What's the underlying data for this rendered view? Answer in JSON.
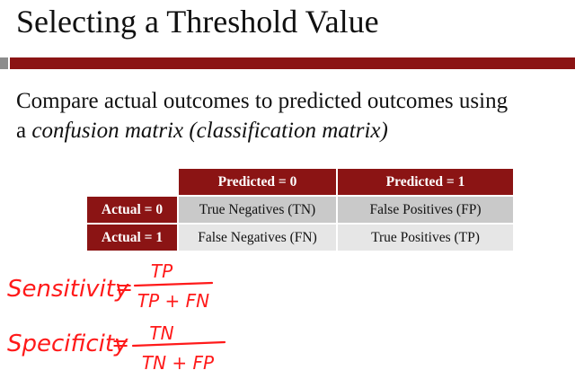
{
  "slide": {
    "title": "Selecting a Threshold Value",
    "body_line1": "Compare actual outcomes to predicted outcomes using",
    "body_line2_prefix": "a ",
    "body_line2_italic": "confusion matrix (classification matrix)"
  },
  "matrix": {
    "col_headers": [
      "Predicted = 0",
      "Predicted = 1"
    ],
    "rows": [
      {
        "label": "Actual = 0",
        "cells": [
          "True Negatives (TN)",
          "False Positives (FP)"
        ]
      },
      {
        "label": "Actual = 1",
        "cells": [
          "False Negatives (FN)",
          "True Positives (TP)"
        ]
      }
    ]
  },
  "annotations": {
    "color": "#ff1a1a",
    "sensitivity": {
      "label": "Sensitivity",
      "equals": "=",
      "numerator": "TP",
      "denominator": "TP + FN"
    },
    "specificity": {
      "label": "Specificity",
      "equals": "=",
      "numerator": "TN",
      "denominator": "TN + FP"
    }
  },
  "colors": {
    "accent": "#8b1414",
    "cell_dark": "#c9c9c9",
    "cell_light": "#e6e6e6"
  }
}
